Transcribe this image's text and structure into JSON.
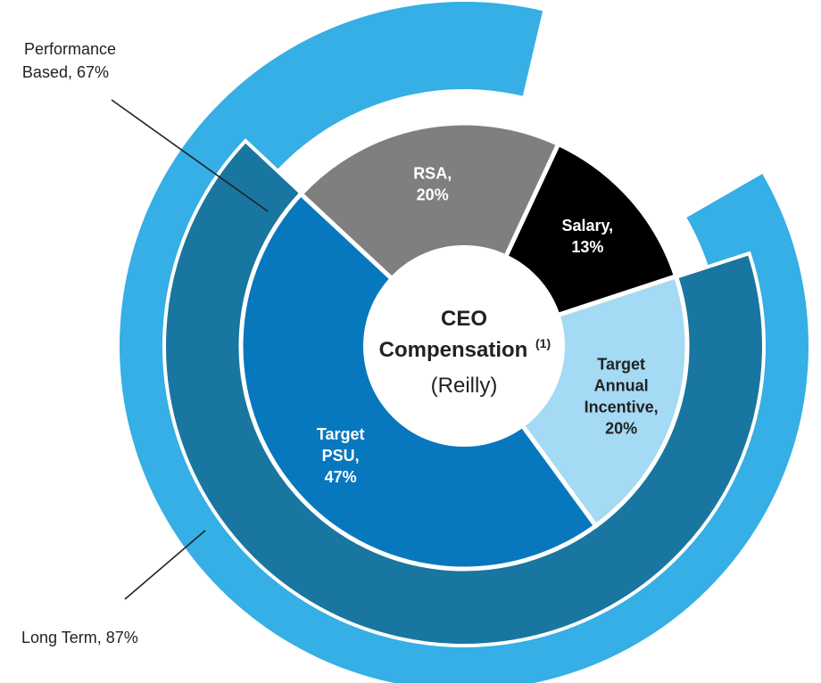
{
  "chart_data": {
    "type": "pie",
    "center": {
      "title": "CEO",
      "title2": "Compensation",
      "superscript": "(1)",
      "subtitle": "(Reilly)"
    },
    "inner_ring": {
      "slices": [
        {
          "key": "salary",
          "label_lines": [
            "Salary,",
            "13%"
          ],
          "value": 13,
          "color": "#000000",
          "text_color": "#ffffff"
        },
        {
          "key": "target_annual_incentive",
          "label_lines": [
            "Target",
            "Annual",
            "Incentive,",
            "20%"
          ],
          "value": 20,
          "color": "#a4daf3",
          "text_color": "#222222"
        },
        {
          "key": "target_psu",
          "label_lines": [
            "Target",
            "PSU,",
            "47%"
          ],
          "value": 47,
          "color": "#0878be",
          "text_color": "#ffffff"
        },
        {
          "key": "rsa",
          "label_lines": [
            "RSA,",
            "20%"
          ],
          "value": 20,
          "color": "#7f7f7f",
          "text_color": "#ffffff"
        }
      ]
    },
    "middle_ring": {
      "label": "Performance Based, 67%",
      "label_lines": [
        "Performance",
        "Based, 67%"
      ],
      "value": 67,
      "color": "#1976a0"
    },
    "outer_ring": {
      "label": "Long Term, 87%",
      "value": 87,
      "color": "#35afe5"
    }
  }
}
